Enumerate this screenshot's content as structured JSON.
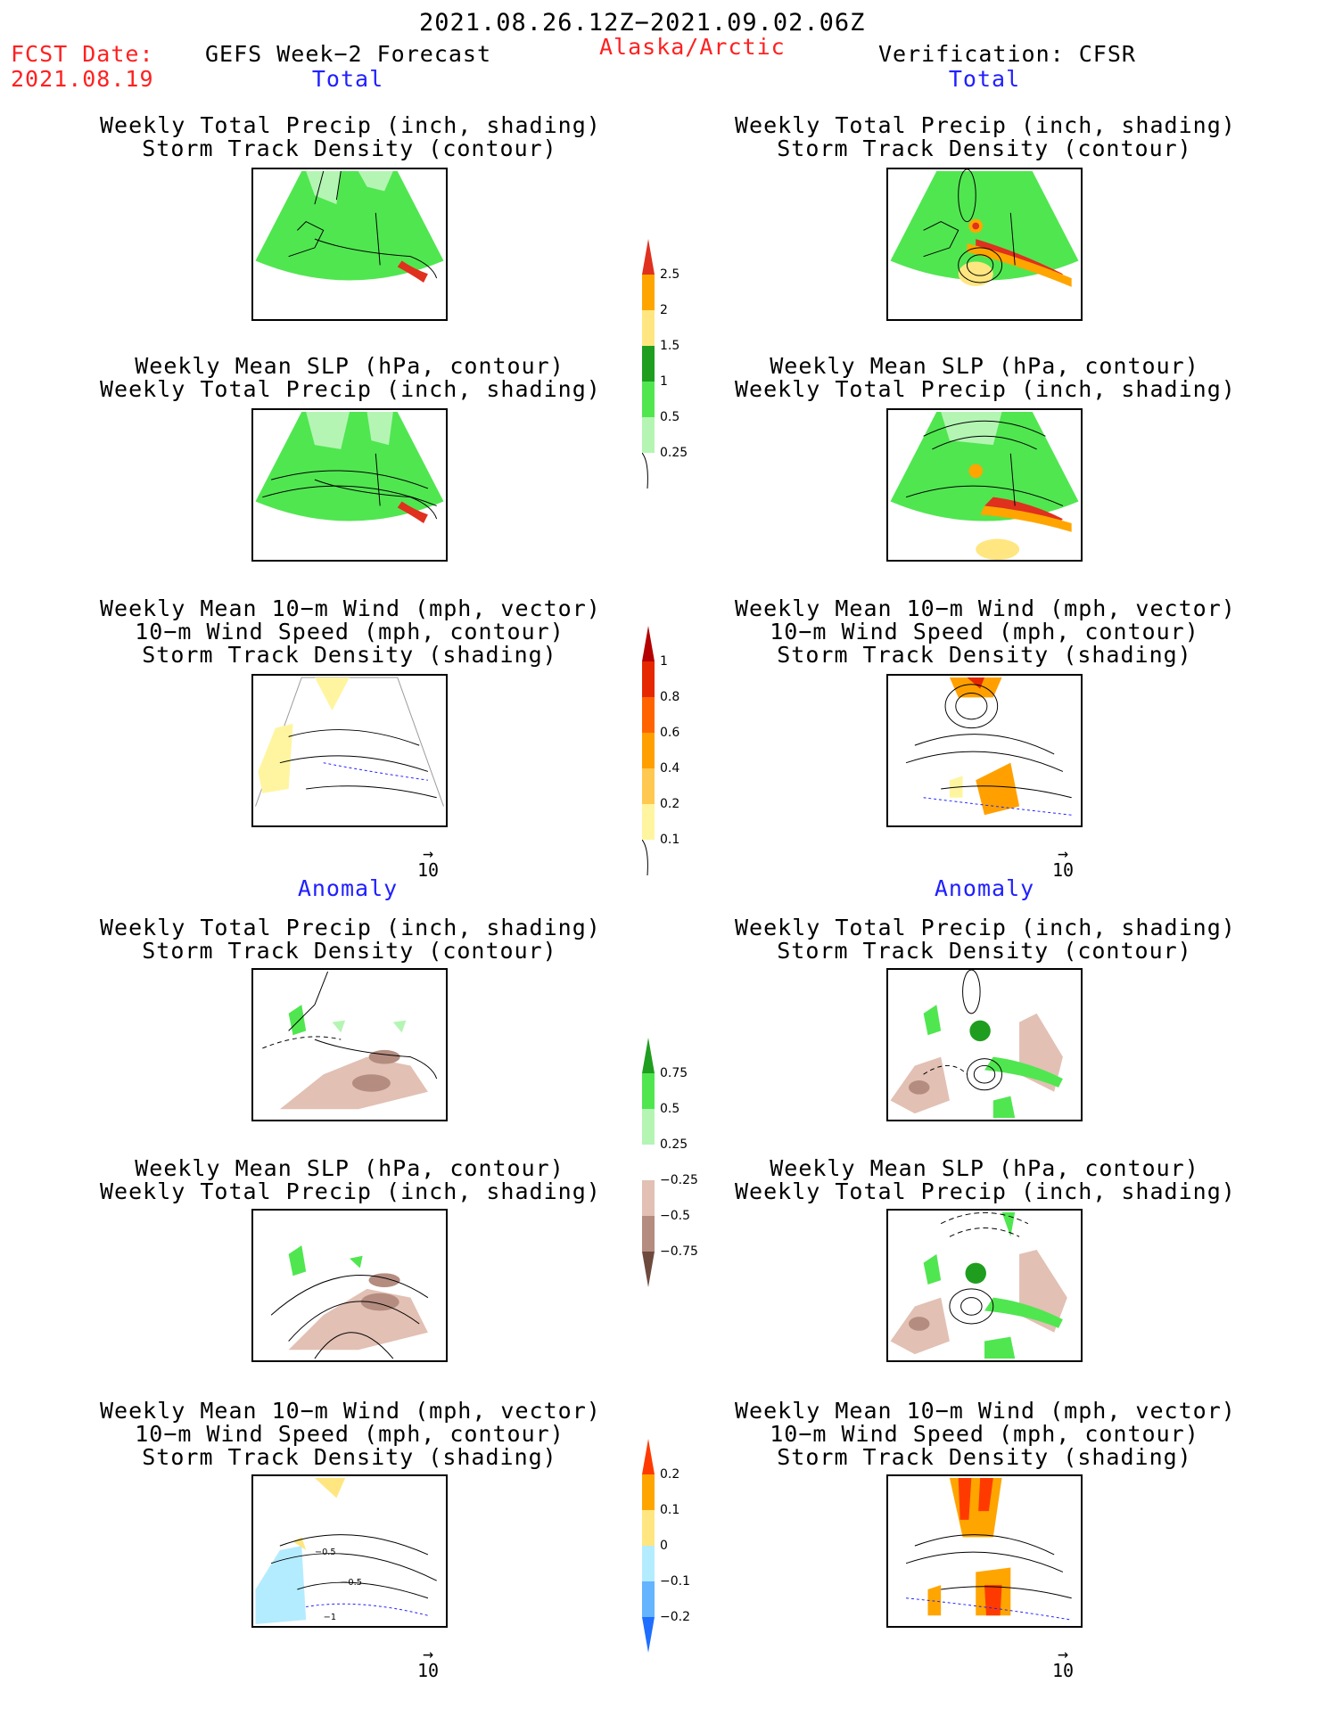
{
  "header": {
    "valid_period": "2021.08.26.12Z−2021.09.02.06Z",
    "fcst_date_label": "FCST Date:",
    "fcst_date_value": "2021.08.19",
    "left_title": "GEFS Week−2 Forecast",
    "region": "Alaska/Arctic",
    "right_title": "Verification: CFSR"
  },
  "sections": {
    "total": "Total",
    "anomaly": "Anomaly"
  },
  "panel_titles": {
    "precip_track": [
      "Weekly Total Precip (inch, shading)",
      "Storm Track Density (contour)"
    ],
    "slp_precip": [
      "Weekly Mean SLP (hPa, contour)",
      "Weekly Total Precip (inch, shading)"
    ],
    "wind": [
      "Weekly Mean 10−m Wind (mph, vector)",
      "10−m Wind Speed (mph, contour)",
      "Storm Track Density (shading)"
    ]
  },
  "reference_vector": {
    "arrow": "→",
    "value": "10"
  },
  "colorbars": {
    "precip_total": {
      "labels": [
        "2.5",
        "2",
        "1.5",
        "1",
        "0.5",
        "0.25"
      ],
      "colors": [
        "#e0301e",
        "#ffa500",
        "#ffe680",
        "#1f9d1f",
        "#50e650",
        "#b4f5b4"
      ]
    },
    "track_total": {
      "labels": [
        "1",
        "0.8",
        "0.6",
        "0.4",
        "0.2",
        "0.1"
      ],
      "colors": [
        "#b40000",
        "#e62800",
        "#ff6400",
        "#ffa000",
        "#ffc850",
        "#fff5a0"
      ]
    },
    "precip_anom": {
      "labels": [
        "0.75",
        "0.5",
        "0.25",
        "−0.25",
        "−0.5",
        "−0.75"
      ],
      "colors": [
        "#1f9d1f",
        "#50e650",
        "#b4f5b4",
        "#ffffff",
        "#e2c0b4",
        "#b48c80",
        "#6e4a3e"
      ]
    },
    "track_anom": {
      "labels": [
        "0.2",
        "0.1",
        "0",
        "−0.1",
        "−0.2"
      ],
      "colors": [
        "#ff3a00",
        "#ffa500",
        "#ffe680",
        "#b4ecff",
        "#64b4ff",
        "#1e6eff"
      ]
    }
  },
  "panel_annotations": {
    "anom_wind_fcst_contour_labels": [
      "−0.5",
      "−0.5",
      "−1"
    ]
  }
}
